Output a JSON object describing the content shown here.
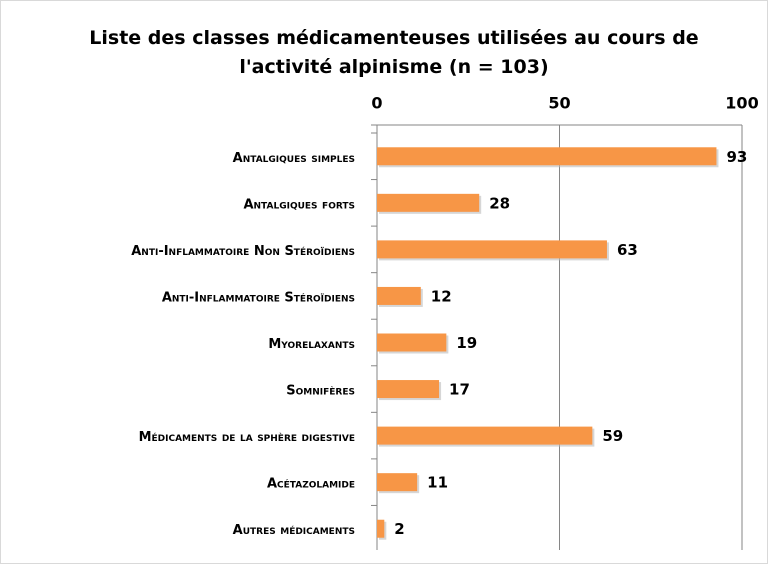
{
  "chart_data": {
    "type": "bar",
    "orientation": "horizontal",
    "title": "Liste des classes médicamenteuses utilisées au cours de l'activité alpinisme (n = 103)",
    "categories": [
      "Antalgiques simples",
      "Antalgiques forts",
      "Anti-Inflammatoire Non Stéroïdiens",
      "Anti-Inflammatoire Stéroïdiens",
      "Myorelaxants",
      "Somnifères",
      "Médicaments de la sphère digestive",
      "Acétazolamide",
      "Autres médicaments"
    ],
    "values": [
      93,
      28,
      63,
      12,
      19,
      17,
      59,
      11,
      2
    ],
    "color": "#f79646",
    "xlim": [
      0,
      100
    ],
    "xticks": [
      0,
      50,
      100
    ],
    "grid": true
  }
}
